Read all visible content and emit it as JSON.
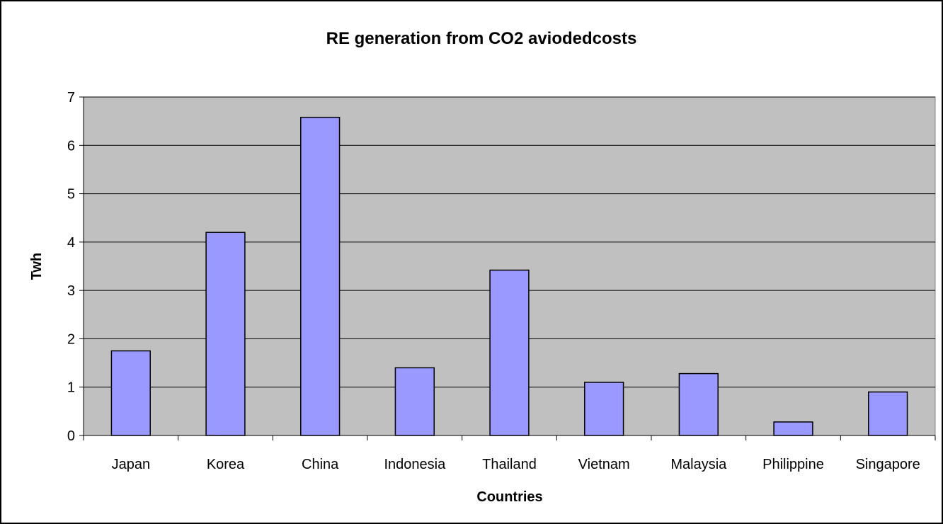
{
  "chart_data": {
    "type": "bar",
    "title": "RE generation from CO2 aviodedcosts",
    "xlabel": "Countries",
    "ylabel": "Twh",
    "categories": [
      "Japan",
      "Korea",
      "China",
      "Indonesia",
      "Thailand",
      "Vietnam",
      "Malaysia",
      "Philippine",
      "Singapore"
    ],
    "values": [
      1.75,
      4.2,
      6.58,
      1.4,
      3.42,
      1.1,
      1.28,
      0.28,
      0.9
    ],
    "ylim": [
      0,
      7
    ],
    "yticks": [
      "0",
      "1",
      "2",
      "3",
      "4",
      "5",
      "6",
      "7"
    ],
    "grid": true,
    "legend": "none",
    "colors": {
      "bar_fill": "#9999ff",
      "bar_stroke": "#000000",
      "plot_background": "#c0c0c0",
      "gridline": "#000000"
    }
  }
}
